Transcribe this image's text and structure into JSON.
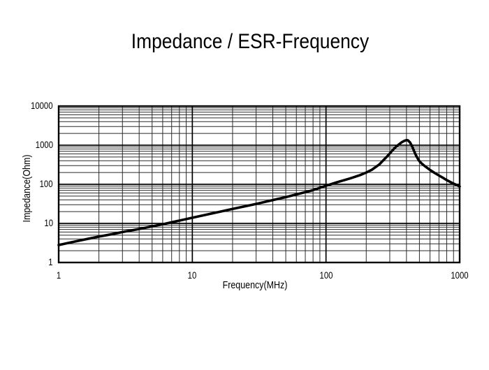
{
  "page": {
    "title": "Impedance / ESR-Frequency"
  },
  "chart_data": {
    "type": "line",
    "title": "Impedance / ESR-Frequency",
    "xlabel": "Frequency(MHz)",
    "ylabel": "Impedance(Ohm)",
    "x_scale": "log",
    "y_scale": "log",
    "x_range": [
      1,
      1000
    ],
    "y_range": [
      1,
      10000
    ],
    "x_ticks": [
      "1",
      "10",
      "100",
      "1000"
    ],
    "y_ticks": [
      "1",
      "10",
      "100",
      "1000",
      "10000"
    ],
    "grid": "full log grid, major and minor lines, black on white",
    "legend": "none",
    "colors": {
      "background": "#ffffff",
      "curve": "#000000",
      "grid_major": "#000000",
      "grid_minor": "#2a2a2a",
      "border": "#000000",
      "text": "#000000"
    },
    "series": [
      {
        "name": "Impedance",
        "peak": {
          "frequency_mhz": 400,
          "impedance_ohm": 1350
        },
        "points": [
          [
            1,
            2.8
          ],
          [
            1.3,
            3.4
          ],
          [
            1.7,
            4.1
          ],
          [
            2,
            4.6
          ],
          [
            2.5,
            5.3
          ],
          [
            3,
            6.0
          ],
          [
            4,
            7.2
          ],
          [
            5,
            8.4
          ],
          [
            6,
            9.5
          ],
          [
            7,
            10.7
          ],
          [
            8,
            11.8
          ],
          [
            10,
            14
          ],
          [
            13,
            17
          ],
          [
            16,
            19.8
          ],
          [
            20,
            23.5
          ],
          [
            25,
            27.5
          ],
          [
            30,
            31.5
          ],
          [
            40,
            39.5
          ],
          [
            50,
            47
          ],
          [
            60,
            55
          ],
          [
            70,
            63
          ],
          [
            80,
            71
          ],
          [
            100,
            92
          ],
          [
            120,
            112
          ],
          [
            150,
            140
          ],
          [
            180,
            172
          ],
          [
            200,
            200
          ],
          [
            220,
            235
          ],
          [
            250,
            320
          ],
          [
            270,
            420
          ],
          [
            290,
            540
          ],
          [
            310,
            700
          ],
          [
            330,
            880
          ],
          [
            350,
            1040
          ],
          [
            370,
            1200
          ],
          [
            385,
            1290
          ],
          [
            400,
            1350
          ],
          [
            410,
            1330
          ],
          [
            425,
            1180
          ],
          [
            440,
            950
          ],
          [
            455,
            720
          ],
          [
            470,
            560
          ],
          [
            485,
            460
          ],
          [
            500,
            390
          ],
          [
            520,
            340
          ],
          [
            550,
            290
          ],
          [
            600,
            233
          ],
          [
            650,
            195
          ],
          [
            700,
            168
          ],
          [
            750,
            147
          ],
          [
            800,
            128
          ],
          [
            850,
            115
          ],
          [
            900,
            104
          ],
          [
            950,
            96
          ],
          [
            1000,
            88
          ]
        ]
      }
    ]
  }
}
